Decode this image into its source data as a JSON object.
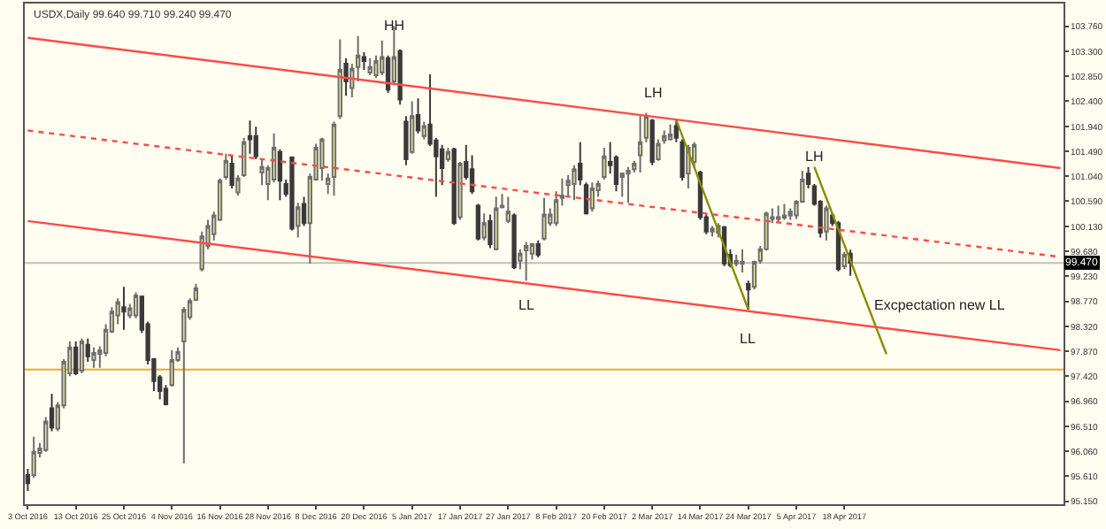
{
  "chart_data": {
    "type": "candlestick",
    "title": "USDX,Daily 99.640 99.710 99.240 99.470",
    "categories": [
      "3 Oct 2016",
      null,
      null,
      null,
      null,
      null,
      null,
      null,
      "13 Oct 2016",
      null,
      null,
      null,
      null,
      null,
      null,
      null,
      "25 Oct 2016",
      null,
      null,
      null,
      null,
      null,
      null,
      null,
      "4 Nov 2016",
      null,
      null,
      null,
      null,
      null,
      null,
      null,
      "16 Nov 2016",
      null,
      null,
      null,
      null,
      null,
      null,
      null,
      "28 Nov 2016",
      null,
      null,
      null,
      null,
      null,
      null,
      null,
      "8 Dec 2016",
      null,
      null,
      null,
      null,
      null,
      null,
      null,
      "20 Dec 2016",
      null,
      null,
      null,
      null,
      null,
      null,
      null,
      "5 Jan 2017",
      null,
      null,
      null,
      null,
      null,
      null,
      null,
      "17 Jan 2017",
      null,
      null,
      null,
      null,
      null,
      null,
      null,
      "27 Jan 2017",
      null,
      null,
      null,
      null,
      null,
      null,
      null,
      "8 Feb 2017",
      null,
      null,
      null,
      null,
      null,
      null,
      null,
      "20 Feb 2017",
      null,
      null,
      null,
      null,
      null,
      null,
      null,
      "2 Mar 2017",
      null,
      null,
      null,
      null,
      null,
      null,
      null,
      "14 Mar 2017",
      null,
      null,
      null,
      null,
      null,
      null,
      null,
      "24 Mar 2017",
      null,
      null,
      null,
      null,
      null,
      null,
      null,
      "5 Apr 2017",
      null,
      null,
      null,
      null,
      null,
      null,
      null,
      "18 Apr 2017",
      null,
      null,
      null,
      null,
      null,
      null,
      null,
      null,
      null,
      null,
      null,
      null,
      null,
      null,
      null,
      null,
      null,
      null,
      null,
      null,
      null,
      null,
      null,
      null,
      null,
      null,
      null,
      null,
      null,
      null,
      null,
      null,
      null,
      null,
      null,
      null
    ],
    "ohlc": [
      [
        95.63,
        95.74,
        95.34,
        95.48
      ],
      [
        95.63,
        96.32,
        95.58,
        96.05
      ],
      [
        96.03,
        96.21,
        95.95,
        96.11
      ],
      [
        96.08,
        96.68,
        96.05,
        96.6
      ],
      [
        96.84,
        97.1,
        96.42,
        96.49
      ],
      [
        96.47,
        96.95,
        96.42,
        96.89
      ],
      [
        96.89,
        97.73,
        96.84,
        97.68
      ],
      [
        97.47,
        98.05,
        97.42,
        97.94
      ],
      [
        97.94,
        98.05,
        97.44,
        97.47
      ],
      [
        97.52,
        98.1,
        97.47,
        98.05
      ],
      [
        97.99,
        98.1,
        97.68,
        97.78
      ],
      [
        97.71,
        97.94,
        97.57,
        97.84
      ],
      [
        97.82,
        97.96,
        97.57,
        97.89
      ],
      [
        97.84,
        98.36,
        97.78,
        98.26
      ],
      [
        98.23,
        98.67,
        98.2,
        98.59
      ],
      [
        98.52,
        98.83,
        98.36,
        98.76
      ],
      [
        98.67,
        99.04,
        98.26,
        98.59
      ],
      [
        98.52,
        98.73,
        98.47,
        98.65
      ],
      [
        98.52,
        98.94,
        98.47,
        98.88
      ],
      [
        98.86,
        98.88,
        98.2,
        98.26
      ],
      [
        98.36,
        98.41,
        97.63,
        97.71
      ],
      [
        97.73,
        97.75,
        97.15,
        97.33
      ],
      [
        97.4,
        97.44,
        97.0,
        97.15
      ],
      [
        97.19,
        97.26,
        96.89,
        96.91
      ],
      [
        97.26,
        97.89,
        97.23,
        97.71
      ],
      [
        97.71,
        97.94,
        97.68,
        97.86
      ],
      [
        98.05,
        98.67,
        95.84,
        98.62
      ],
      [
        98.49,
        98.83,
        98.44,
        98.78
      ],
      [
        98.8,
        99.09,
        98.78,
        99.01
      ],
      [
        99.36,
        100.04,
        99.32,
        99.95
      ],
      [
        99.78,
        100.25,
        99.72,
        100.14
      ],
      [
        99.99,
        100.4,
        99.88,
        100.33
      ],
      [
        100.25,
        101.0,
        100.23,
        100.96
      ],
      [
        101.03,
        101.45,
        100.98,
        101.32
      ],
      [
        101.27,
        101.4,
        100.82,
        100.88
      ],
      [
        100.75,
        101.06,
        100.69,
        101.0
      ],
      [
        101.06,
        101.74,
        101.03,
        101.66
      ],
      [
        101.77,
        102.05,
        101.45,
        101.71
      ],
      [
        101.77,
        101.94,
        101.35,
        101.4
      ],
      [
        101.11,
        101.35,
        100.88,
        101.21
      ],
      [
        100.9,
        101.24,
        100.61,
        101.19
      ],
      [
        100.98,
        101.82,
        100.93,
        101.56
      ],
      [
        101.48,
        101.53,
        100.61,
        100.96
      ],
      [
        100.9,
        100.98,
        100.67,
        100.72
      ],
      [
        101.38,
        101.4,
        100.06,
        100.09
      ],
      [
        100.14,
        100.56,
        99.93,
        100.48
      ],
      [
        100.54,
        100.67,
        100.14,
        100.19
      ],
      [
        100.19,
        101.09,
        99.46,
        101.03
      ],
      [
        100.98,
        101.63,
        100.96,
        101.56
      ],
      [
        101.19,
        101.74,
        100.96,
        101.71
      ],
      [
        100.9,
        101.09,
        100.72,
        101.0
      ],
      [
        101.03,
        102.03,
        100.69,
        101.98
      ],
      [
        102.13,
        103.52,
        102.08,
        102.97
      ],
      [
        103.08,
        103.18,
        102.5,
        102.76
      ],
      [
        102.64,
        103.08,
        102.47,
        102.99
      ],
      [
        103.02,
        103.58,
        102.76,
        103.23
      ],
      [
        103.2,
        103.29,
        102.97,
        103.13
      ],
      [
        102.92,
        103.18,
        102.87,
        103.02
      ],
      [
        102.87,
        103.23,
        102.82,
        103.13
      ],
      [
        102.92,
        103.5,
        102.87,
        103.2
      ],
      [
        103.18,
        103.23,
        102.55,
        102.61
      ],
      [
        102.76,
        103.76,
        102.71,
        103.2
      ],
      [
        103.31,
        103.34,
        102.34,
        102.43
      ],
      [
        102.03,
        102.13,
        101.24,
        101.35
      ],
      [
        101.48,
        102.4,
        101.45,
        102.13
      ],
      [
        102.15,
        102.45,
        101.82,
        101.87
      ],
      [
        101.77,
        102.03,
        101.71,
        101.95
      ],
      [
        101.98,
        102.89,
        101.59,
        101.63
      ],
      [
        101.69,
        101.74,
        100.67,
        101.4
      ],
      [
        101.53,
        101.61,
        100.88,
        101.19
      ],
      [
        101.35,
        101.56,
        101.3,
        101.48
      ],
      [
        101.53,
        101.56,
        100.16,
        100.19
      ],
      [
        100.3,
        101.3,
        100.25,
        101.27
      ],
      [
        101.3,
        101.61,
        100.98,
        101.03
      ],
      [
        101.17,
        101.42,
        100.72,
        100.77
      ],
      [
        100.51,
        100.54,
        99.88,
        99.91
      ],
      [
        99.93,
        100.37,
        99.88,
        100.19
      ],
      [
        100.23,
        100.35,
        99.74,
        99.81
      ],
      [
        99.72,
        100.67,
        99.7,
        100.46
      ],
      [
        100.48,
        100.72,
        100.46,
        100.51
      ],
      [
        100.23,
        100.67,
        100.19,
        100.4
      ],
      [
        100.33,
        100.37,
        99.36,
        99.39
      ],
      [
        99.51,
        99.72,
        99.36,
        99.64
      ],
      [
        99.7,
        99.85,
        99.15,
        99.78
      ],
      [
        99.64,
        99.83,
        99.53,
        99.81
      ],
      [
        99.81,
        99.88,
        99.57,
        99.62
      ],
      [
        99.91,
        100.65,
        99.88,
        100.35
      ],
      [
        100.19,
        100.46,
        100.14,
        100.35
      ],
      [
        100.19,
        100.77,
        100.14,
        100.61
      ],
      [
        100.65,
        101.0,
        100.51,
        100.69
      ],
      [
        100.88,
        101.06,
        100.67,
        100.96
      ],
      [
        100.9,
        101.24,
        100.61,
        101.17
      ],
      [
        101.27,
        101.66,
        100.88,
        100.98
      ],
      [
        100.88,
        100.93,
        100.35,
        100.37
      ],
      [
        100.46,
        100.93,
        100.4,
        100.82
      ],
      [
        100.79,
        100.96,
        100.67,
        100.9
      ],
      [
        101.03,
        101.56,
        100.98,
        101.4
      ],
      [
        101.3,
        101.66,
        101.09,
        101.24
      ],
      [
        101.38,
        101.42,
        100.77,
        100.9
      ],
      [
        101.03,
        101.11,
        100.67,
        101.09
      ],
      [
        101.09,
        101.21,
        100.56,
        101.14
      ],
      [
        101.17,
        101.32,
        101.11,
        101.27
      ],
      [
        101.42,
        102.13,
        101.11,
        101.66
      ],
      [
        101.74,
        102.19,
        101.66,
        102.13
      ],
      [
        102.05,
        102.08,
        101.24,
        101.3
      ],
      [
        101.35,
        101.71,
        101.32,
        101.63
      ],
      [
        101.69,
        101.87,
        101.63,
        101.77
      ],
      [
        101.71,
        101.98,
        101.69,
        101.8
      ],
      [
        101.95,
        102.05,
        101.66,
        101.74
      ],
      [
        101.66,
        101.71,
        100.96,
        101.03
      ],
      [
        101.09,
        101.61,
        100.82,
        101.56
      ],
      [
        101.3,
        101.66,
        101.19,
        101.61
      ],
      [
        101.11,
        101.14,
        100.25,
        100.3
      ],
      [
        100.3,
        100.35,
        99.99,
        100.04
      ],
      [
        100.04,
        100.14,
        99.95,
        100.09
      ],
      [
        100.02,
        100.19,
        99.93,
        100.14
      ],
      [
        100.12,
        100.14,
        99.41,
        99.46
      ],
      [
        99.62,
        99.72,
        99.39,
        99.43
      ],
      [
        99.46,
        99.62,
        99.41,
        99.51
      ],
      [
        99.46,
        99.72,
        99.3,
        99.49
      ],
      [
        99.09,
        99.15,
        98.62,
        98.99
      ],
      [
        99.04,
        99.51,
        98.99,
        99.49
      ],
      [
        99.51,
        99.78,
        99.46,
        99.72
      ],
      [
        99.72,
        100.4,
        99.7,
        100.37
      ],
      [
        100.27,
        100.46,
        100.19,
        100.3
      ],
      [
        100.27,
        100.51,
        100.19,
        100.3
      ],
      [
        100.29,
        100.54,
        100.25,
        100.33
      ],
      [
        100.33,
        100.46,
        100.25,
        100.4
      ],
      [
        100.33,
        100.61,
        100.27,
        100.58
      ],
      [
        100.58,
        101.14,
        100.56,
        100.98
      ],
      [
        101.09,
        101.21,
        100.82,
        100.9
      ],
      [
        100.86,
        100.9,
        100.51,
        100.54
      ],
      [
        100.58,
        100.61,
        99.93,
        100.02
      ],
      [
        100.04,
        100.51,
        99.88,
        100.46
      ],
      [
        100.33,
        100.37,
        100.14,
        100.19
      ],
      [
        100.19,
        100.23,
        99.32,
        99.36
      ],
      [
        99.41,
        99.67,
        99.36,
        99.62
      ],
      [
        99.64,
        99.71,
        99.24,
        99.47
      ],
      null,
      null,
      null,
      null,
      null,
      null,
      null,
      null,
      null,
      null,
      null,
      null,
      null,
      null,
      null,
      null,
      null,
      null,
      null,
      null,
      null,
      null,
      null,
      null,
      null,
      null,
      null,
      null,
      null,
      null,
      null,
      null,
      null,
      null,
      null
    ],
    "series": [
      {
        "type": "line",
        "color": "#ff4a4a",
        "line_style": "solid",
        "values": [
          103.55,
          null,
          null,
          null,
          null,
          null,
          null,
          null,
          null,
          null,
          null,
          null,
          null,
          null,
          null,
          null,
          null,
          null,
          null,
          null,
          null,
          null,
          null,
          null,
          null,
          null,
          null,
          null,
          null,
          null,
          null,
          null,
          null,
          null,
          null,
          null,
          null,
          null,
          null,
          null,
          null,
          null,
          null,
          null,
          null,
          null,
          null,
          null,
          null,
          null,
          null,
          null,
          null,
          null,
          null,
          null,
          null,
          null,
          null,
          null,
          null,
          null,
          null,
          null,
          null,
          null,
          null,
          null,
          null,
          null,
          null,
          null,
          null,
          null,
          null,
          null,
          null,
          null,
          null,
          null,
          null,
          null,
          null,
          null,
          null,
          null,
          null,
          null,
          null,
          null,
          null,
          null,
          null,
          null,
          null,
          null,
          null,
          null,
          null,
          null,
          null,
          null,
          null,
          null,
          null,
          null,
          null,
          null,
          null,
          null,
          null,
          null,
          null,
          null,
          null,
          null,
          null,
          null,
          null,
          null,
          null,
          null,
          null,
          null,
          null,
          null,
          null,
          null,
          null,
          null,
          null,
          null,
          null,
          null,
          null,
          null,
          null,
          null,
          null,
          null,
          null,
          null,
          null,
          null,
          null,
          null,
          null,
          null,
          null,
          null,
          null,
          null,
          null,
          null,
          null,
          null,
          null,
          null,
          null,
          null,
          null,
          null,
          null,
          null,
          null,
          null,
          null,
          null,
          null,
          null,
          null,
          null,
          101.19
        ]
      },
      {
        "type": "line",
        "color": "#ff4a4a",
        "line_style": "dotted",
        "values": [
          101.87,
          null,
          null,
          null,
          null,
          null,
          null,
          null,
          null,
          null,
          null,
          null,
          null,
          null,
          null,
          null,
          null,
          null,
          null,
          null,
          null,
          null,
          null,
          null,
          null,
          null,
          null,
          null,
          null,
          null,
          null,
          null,
          null,
          null,
          null,
          null,
          null,
          null,
          null,
          null,
          null,
          null,
          null,
          null,
          null,
          null,
          null,
          null,
          null,
          null,
          null,
          null,
          null,
          null,
          null,
          null,
          null,
          null,
          null,
          null,
          null,
          null,
          null,
          null,
          null,
          null,
          null,
          null,
          null,
          null,
          null,
          null,
          null,
          null,
          null,
          null,
          null,
          null,
          null,
          null,
          null,
          null,
          null,
          null,
          null,
          null,
          null,
          null,
          null,
          null,
          null,
          null,
          null,
          null,
          null,
          null,
          null,
          null,
          null,
          null,
          null,
          null,
          null,
          null,
          null,
          null,
          null,
          null,
          null,
          null,
          null,
          null,
          null,
          null,
          null,
          null,
          null,
          null,
          null,
          null,
          null,
          null,
          null,
          null,
          null,
          null,
          null,
          null,
          null,
          null,
          null,
          null,
          null,
          null,
          null,
          null,
          null,
          null,
          null,
          null,
          null,
          null,
          null,
          null,
          null,
          null,
          null,
          null,
          null,
          null,
          null,
          null,
          null,
          null,
          null,
          null,
          null,
          null,
          null,
          null,
          null,
          null,
          null,
          null,
          null,
          null,
          null,
          null,
          null,
          null,
          null,
          null,
          99.58
        ]
      },
      {
        "type": "line",
        "color": "#ff4a4a",
        "line_style": "solid",
        "values": [
          100.23,
          null,
          null,
          null,
          null,
          null,
          null,
          null,
          null,
          null,
          null,
          null,
          null,
          null,
          null,
          null,
          null,
          null,
          null,
          null,
          null,
          null,
          null,
          null,
          null,
          null,
          null,
          null,
          null,
          null,
          null,
          null,
          null,
          null,
          null,
          null,
          null,
          null,
          null,
          null,
          null,
          null,
          null,
          null,
          null,
          null,
          null,
          null,
          null,
          null,
          null,
          null,
          null,
          null,
          null,
          null,
          null,
          null,
          null,
          null,
          null,
          null,
          null,
          null,
          null,
          null,
          null,
          null,
          null,
          null,
          null,
          null,
          null,
          null,
          null,
          null,
          null,
          null,
          null,
          null,
          null,
          null,
          null,
          null,
          null,
          null,
          null,
          null,
          null,
          null,
          null,
          null,
          null,
          null,
          null,
          null,
          null,
          null,
          null,
          null,
          null,
          null,
          null,
          null,
          null,
          null,
          null,
          null,
          null,
          null,
          null,
          null,
          null,
          null,
          null,
          null,
          null,
          null,
          null,
          null,
          null,
          null,
          null,
          null,
          null,
          null,
          null,
          null,
          null,
          null,
          null,
          null,
          null,
          null,
          null,
          null,
          null,
          null,
          null,
          null,
          null,
          null,
          null,
          null,
          null,
          null,
          null,
          null,
          null,
          null,
          null,
          null,
          null,
          null,
          null,
          null,
          null,
          null,
          null,
          null,
          null,
          null,
          null,
          null,
          null,
          null,
          null,
          null,
          null,
          null,
          null,
          null,
          97.89
        ]
      },
      {
        "type": "line",
        "color": "#8c8c00",
        "line_style": "solid",
        "values": [
          null,
          null,
          null,
          null,
          null,
          null,
          null,
          null,
          null,
          null,
          null,
          null,
          null,
          null,
          null,
          null,
          null,
          null,
          null,
          null,
          null,
          null,
          null,
          null,
          null,
          null,
          null,
          null,
          null,
          null,
          null,
          null,
          null,
          null,
          null,
          null,
          null,
          null,
          null,
          null,
          null,
          null,
          null,
          null,
          null,
          null,
          null,
          null,
          null,
          null,
          null,
          null,
          null,
          null,
          null,
          null,
          null,
          null,
          null,
          null,
          null,
          null,
          null,
          null,
          null,
          null,
          null,
          null,
          null,
          null,
          null,
          null,
          null,
          null,
          null,
          null,
          null,
          null,
          null,
          null,
          null,
          null,
          null,
          null,
          null,
          null,
          null,
          null,
          null,
          null,
          null,
          null,
          null,
          null,
          null,
          null,
          null,
          null,
          null,
          null,
          null,
          null,
          null,
          null,
          null,
          null,
          null,
          null,
          102.06,
          null,
          null,
          null,
          null,
          null,
          null,
          null,
          null,
          null,
          null,
          null,
          98.63,
          null,
          null,
          null,
          null,
          null,
          null,
          null,
          null,
          null,
          null,
          null,
          null,
          null,
          null,
          null,
          null,
          null,
          null,
          null,
          null,
          null,
          null,
          null,
          null,
          null,
          null,
          null,
          null,
          null,
          null,
          null,
          null,
          null,
          null,
          null,
          null,
          null,
          null,
          null,
          null,
          null,
          null,
          null,
          null,
          null,
          null,
          null,
          null,
          null,
          null,
          null,
          null
        ]
      },
      {
        "type": "line",
        "color": "#8c8c00",
        "line_style": "solid",
        "values": [
          null,
          null,
          null,
          null,
          null,
          null,
          null,
          null,
          null,
          null,
          null,
          null,
          null,
          null,
          null,
          null,
          null,
          null,
          null,
          null,
          null,
          null,
          null,
          null,
          null,
          null,
          null,
          null,
          null,
          null,
          null,
          null,
          null,
          null,
          null,
          null,
          null,
          null,
          null,
          null,
          null,
          null,
          null,
          null,
          null,
          null,
          null,
          null,
          null,
          null,
          null,
          null,
          null,
          null,
          null,
          null,
          null,
          null,
          null,
          null,
          null,
          null,
          null,
          null,
          null,
          null,
          null,
          null,
          null,
          null,
          null,
          null,
          null,
          null,
          null,
          null,
          null,
          null,
          null,
          null,
          null,
          null,
          null,
          null,
          null,
          null,
          null,
          null,
          null,
          null,
          null,
          null,
          null,
          null,
          null,
          null,
          null,
          null,
          null,
          null,
          null,
          null,
          null,
          null,
          null,
          null,
          null,
          null,
          null,
          null,
          null,
          null,
          null,
          null,
          null,
          null,
          null,
          null,
          null,
          null,
          null,
          null,
          null,
          null,
          null,
          null,
          null,
          null,
          null,
          null,
          null,
          101.21,
          null,
          null,
          null,
          null,
          null,
          null,
          null,
          null,
          null,
          null,
          null,
          97.82,
          null,
          null,
          null,
          null,
          null,
          null,
          null,
          null,
          null,
          null,
          null,
          null,
          null,
          null,
          null,
          null,
          null,
          null,
          null,
          null,
          null,
          null,
          null,
          null,
          null,
          null,
          null,
          null,
          null
        ]
      }
    ],
    "ref_lines": [
      {
        "axis": "y",
        "value": 99.47,
        "label": "99.470",
        "color": "#c0c0c0"
      },
      {
        "axis": "y",
        "value": 97.54,
        "color": "#f5a623"
      }
    ],
    "annotations": [
      "HH",
      "LL",
      "LH",
      "LL",
      "LH",
      "Excpectation new LL"
    ],
    "ylim": [
      95.1,
      104.17
    ],
    "yticks": [
      {
        "value": 103.76,
        "label": "103.760"
      },
      {
        "value": 103.3,
        "label": "103.300"
      },
      {
        "value": 102.85,
        "label": "102.850"
      },
      {
        "value": 102.4,
        "label": "102.400"
      },
      {
        "value": 101.94,
        "label": "101.940"
      },
      {
        "value": 101.49,
        "label": "101.490"
      },
      {
        "value": 101.04,
        "label": "101.040"
      },
      {
        "value": 100.59,
        "label": "100.590"
      },
      {
        "value": 100.13,
        "label": "100.130"
      },
      {
        "value": 99.68,
        "label": "99.680"
      },
      {
        "value": 99.23,
        "label": "99.230"
      },
      {
        "value": 98.77,
        "label": "98.770"
      },
      {
        "value": 98.32,
        "label": "98.320"
      },
      {
        "value": 97.87,
        "label": "97.870"
      },
      {
        "value": 97.42,
        "label": "97.420"
      },
      {
        "value": 96.96,
        "label": "96.960"
      },
      {
        "value": 96.51,
        "label": "96.510"
      },
      {
        "value": 96.06,
        "label": "96.060"
      },
      {
        "value": 95.61,
        "label": "95.610"
      },
      {
        "value": 95.15,
        "label": "95.150"
      }
    ],
    "tick_labels": "xy"
  }
}
